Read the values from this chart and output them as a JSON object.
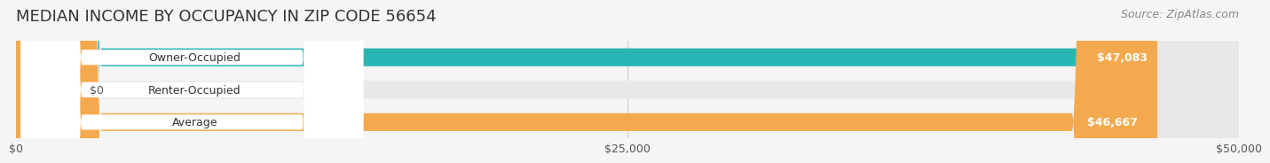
{
  "title": "MEDIAN INCOME BY OCCUPANCY IN ZIP CODE 56654",
  "source": "Source: ZipAtlas.com",
  "categories": [
    "Owner-Occupied",
    "Renter-Occupied",
    "Average"
  ],
  "values": [
    47083,
    0,
    46667
  ],
  "bar_colors": [
    "#2ab5b5",
    "#b09ccc",
    "#f5a94e"
  ],
  "bar_labels": [
    "$47,083",
    "$0",
    "$46,667"
  ],
  "xlim": [
    0,
    50000
  ],
  "xticks": [
    0,
    25000,
    50000
  ],
  "xtick_labels": [
    "$0",
    "$25,000",
    "$50,000"
  ],
  "bg_color": "#f5f5f5",
  "bar_bg_color": "#e8e8e8",
  "title_fontsize": 13,
  "source_fontsize": 9,
  "label_fontsize": 9,
  "tick_fontsize": 9
}
